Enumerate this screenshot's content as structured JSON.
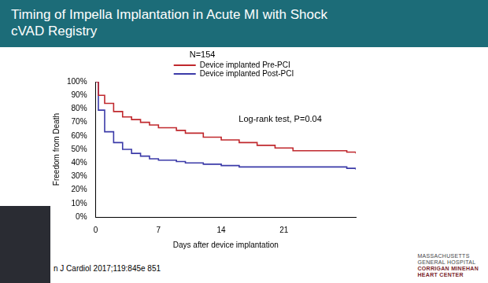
{
  "chart_data": {
    "type": "line",
    "title": "Timing of Impella Implantation in Acute MI with Shock",
    "subtitle": "cVAD Registry",
    "x_label": "Days after device implantation",
    "y_label": "Freedom from Death",
    "annotations": [
      "N=154",
      "Log-rank test, P=0.04"
    ],
    "x": [
      0,
      0.3,
      1,
      2,
      3,
      4,
      5,
      6,
      7,
      9,
      10,
      12,
      14,
      16,
      18,
      20,
      22,
      28,
      29
    ],
    "series": [
      {
        "name": "Device implanted Pre-PCI",
        "color": "#c0282d",
        "line_style": "stepped",
        "values": [
          100,
          90,
          84,
          78,
          74,
          72,
          70,
          68,
          66,
          64,
          62,
          59,
          57,
          55,
          53,
          51,
          49,
          48,
          47
        ]
      },
      {
        "name": "Device implanted Post-PCI",
        "color": "#3b3aa8",
        "line_style": "stepped",
        "values": [
          100,
          79,
          63,
          55,
          50,
          47,
          45,
          43,
          42,
          41,
          40,
          39,
          38,
          37,
          37,
          37,
          37,
          36,
          35
        ]
      }
    ],
    "xlim": [
      0,
      29
    ],
    "xticks": [
      0,
      7,
      14,
      21
    ],
    "ylim": [
      0,
      100
    ],
    "yticks": [
      {
        "value": 0,
        "label": "0%"
      },
      {
        "value": 10,
        "label": "10%"
      },
      {
        "value": 20,
        "label": "20%"
      },
      {
        "value": 30,
        "label": "30%"
      },
      {
        "value": 40,
        "label": "40%"
      },
      {
        "value": 50,
        "label": "50%"
      },
      {
        "value": 60,
        "label": "60%"
      },
      {
        "value": 70,
        "label": "70%"
      },
      {
        "value": 80,
        "label": "80%"
      },
      {
        "value": 90,
        "label": "90%"
      },
      {
        "value": 100,
        "label": "100%"
      }
    ],
    "grid": false,
    "legend": "top"
  },
  "slide": {
    "citation": "n J Cardiol 2017;119:845e 851",
    "logo": [
      "MASSACHUSETTS",
      "GENERAL HOSPITAL",
      "CORRIGAN MINEHAN",
      "HEART CENTER"
    ]
  }
}
